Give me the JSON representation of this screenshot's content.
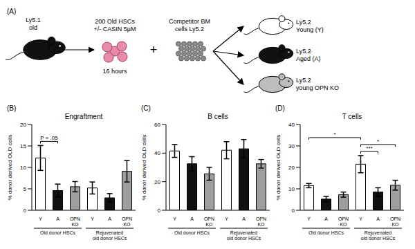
{
  "panel_a": {
    "label": "(A)",
    "donor": {
      "strain": "Ly5.1",
      "age": "old",
      "color": "#111111"
    },
    "cells": {
      "text": [
        "200 Old HSCs",
        "+/- CASIN 5µM"
      ],
      "time": "16 hours",
      "color": "#e88aa8"
    },
    "plus": "+",
    "competitor": {
      "text": [
        "Competitor BM",
        "cells Ly5.2"
      ],
      "color": "#8a8a8a"
    },
    "recipients": [
      {
        "strain": "Ly5.2",
        "label": "Young (Y)",
        "color": "#ffffff"
      },
      {
        "strain": "Ly5.2",
        "label": "Aged (A)",
        "color": "#111111"
      },
      {
        "strain": "Ly5.2",
        "label": "young OPN KO",
        "color": "#bdbdbd"
      }
    ]
  },
  "chart_data": [
    {
      "label": "(B)",
      "type": "bar",
      "title": "Engraftment",
      "y_label": "% donor derived OLD cells",
      "categories": [
        "Y",
        "A",
        "OPN KO",
        "Y",
        "A",
        "OPN KO"
      ],
      "group_labels": [
        "Old donor HSCs",
        "Rejuvenated old donor HSCs"
      ],
      "values": [
        12.2,
        4.6,
        5.5,
        5.2,
        2.9,
        9.1
      ],
      "errors": [
        2.9,
        1.5,
        1.2,
        1.4,
        1.0,
        2.5
      ],
      "colors": [
        "#ffffff",
        "#111111",
        "#9e9e9e",
        "#ffffff",
        "#111111",
        "#9e9e9e"
      ],
      "ylim": [
        0,
        20
      ],
      "yticks": [
        0,
        5,
        10,
        15,
        20
      ],
      "annotations": [
        {
          "text": "P = .05",
          "from": 0,
          "to": 1
        }
      ]
    },
    {
      "label": "(C)",
      "type": "bar",
      "title": "B cells",
      "y_label": "% donor derived OLD cells",
      "categories": [
        "Y",
        "A",
        "OPN KO",
        "Y",
        "A",
        "OPN KO"
      ],
      "group_labels": [
        "Old donor HSCs",
        "Rejuvenated old donor HSCs"
      ],
      "values": [
        41.5,
        32.5,
        25.5,
        42,
        43,
        32.5
      ],
      "errors": [
        4.5,
        5,
        4.5,
        6,
        6.5,
        3
      ],
      "colors": [
        "#ffffff",
        "#111111",
        "#9e9e9e",
        "#ffffff",
        "#111111",
        "#9e9e9e"
      ],
      "ylim": [
        0,
        60
      ],
      "yticks": [
        0,
        20,
        40,
        60
      ],
      "annotations": []
    },
    {
      "label": "(D)",
      "type": "bar",
      "title": "T cells",
      "y_label": "% donor derived OLD cells",
      "categories": [
        "Y",
        "A",
        "OPN KO",
        "Y",
        "A",
        "OPN KO"
      ],
      "group_labels": [
        "Old donor HSCs",
        "Rejuvenated old donor HSCs"
      ],
      "values": [
        11.5,
        5.2,
        7.3,
        21.5,
        8.5,
        11.7
      ],
      "errors": [
        1,
        1.3,
        1.2,
        4,
        2,
        2.3
      ],
      "colors": [
        "#ffffff",
        "#111111",
        "#9e9e9e",
        "#ffffff",
        "#111111",
        "#9e9e9e"
      ],
      "ylim": [
        0,
        40
      ],
      "yticks": [
        0,
        10,
        20,
        30,
        40
      ],
      "annotations": [
        {
          "text": "*",
          "from": 0,
          "to": 3
        },
        {
          "text": "***",
          "from": 3,
          "to": 4
        },
        {
          "text": "*",
          "from": 3,
          "to": 5
        }
      ]
    }
  ]
}
